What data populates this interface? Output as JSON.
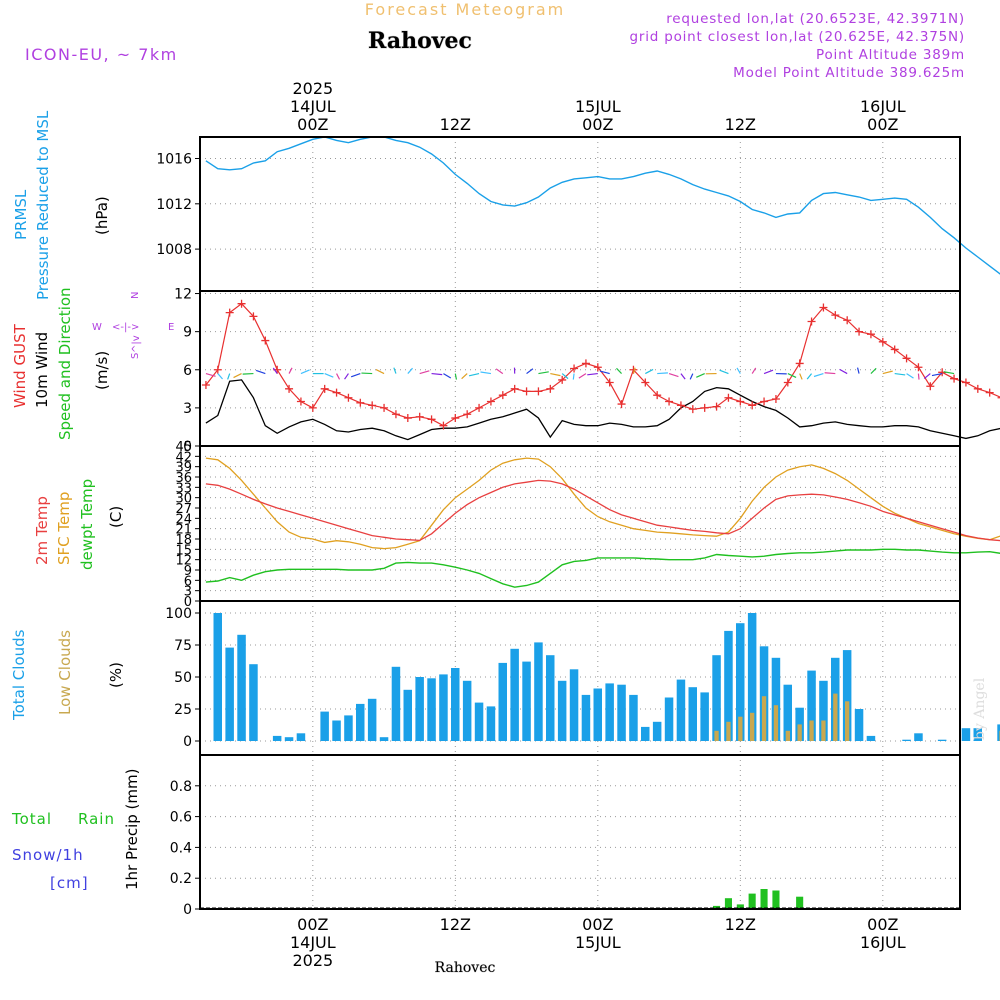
{
  "header": {
    "subtitle": "Forecast Meteogram",
    "location": "Rahovec",
    "model": "ICON-EU, ~ 7km",
    "requested": "requested lon,lat (20.6523E, 42.3971N)",
    "gridpoint": "grid point closest lon,lat (20.625E, 42.375N)",
    "point_alt": "Point Altitude 389m",
    "model_alt": "Model Point Altitude 389.625m",
    "footer_location": "Rahovec",
    "watermark": "by Angel"
  },
  "time_axis": {
    "top_labels": [
      {
        "hour": 0,
        "lines": [
          "2025",
          "14JUL",
          "00Z"
        ]
      },
      {
        "hour": 12,
        "lines": [
          "12Z"
        ]
      },
      {
        "hour": 24,
        "lines": [
          "15JUL",
          "00Z"
        ]
      },
      {
        "hour": 36,
        "lines": [
          "12Z"
        ]
      },
      {
        "hour": 48,
        "lines": [
          "16JUL",
          "00Z"
        ]
      },
      {
        "hour": 60,
        "lines": [
          "12Z"
        ]
      }
    ],
    "bottom_labels": [
      {
        "hour": 0,
        "lines": [
          "00Z",
          "14JUL",
          "2025"
        ]
      },
      {
        "hour": 12,
        "lines": [
          "12Z"
        ]
      },
      {
        "hour": 24,
        "lines": [
          "00Z",
          "15JUL"
        ]
      },
      {
        "hour": 36,
        "lines": [
          "12Z"
        ]
      },
      {
        "hour": 48,
        "lines": [
          "00Z",
          "16JUL"
        ]
      },
      {
        "hour": 60,
        "lines": [
          "12Z"
        ]
      }
    ]
  },
  "colors": {
    "pressure": "#1aa0e8",
    "gust": "#e83030",
    "wind": "#000000",
    "t2m": "#e84040",
    "tsfc": "#e0a020",
    "dewpt": "#20c020",
    "total_clouds": "#1aa0e8",
    "low_clouds": "#c8a850",
    "rain": "#20c020",
    "snow": "#4040e0",
    "compass": "#b040e0"
  },
  "panels": {
    "pressure": {
      "label1": "PRMSL",
      "label2": "Pressure Reduced to MSL",
      "unit": "(hPa)",
      "ticks": [
        "1008",
        "1012",
        "1016"
      ]
    },
    "wind": {
      "label1": "Wind GUST",
      "label2": "10m Wind",
      "label3": "Speed and Direction",
      "unit": "(m/s)",
      "ticks": [
        "0",
        "3",
        "6",
        "9",
        "12"
      ],
      "compass_n": "N",
      "compass_s": "S",
      "compass_w": "W",
      "compass_e": "E",
      "compass_arrow_h": "<-|->",
      "compass_arrow_v": "^|v"
    },
    "temp": {
      "label1": "2m Temp",
      "label2": "SFC Temp",
      "label3": "dewpt Temp",
      "unit": "(C)",
      "ticks": [
        "0",
        "3",
        "6",
        "9",
        "12",
        "15",
        "18",
        "21",
        "24",
        "27",
        "30",
        "33",
        "36",
        "39",
        "42",
        "45"
      ]
    },
    "clouds": {
      "label1": "Total Clouds",
      "label2": "Low Clouds",
      "unit": "(%)",
      "ticks": [
        "0",
        "25",
        "50",
        "75",
        "100"
      ]
    },
    "precip": {
      "label1": "Total",
      "label1b": "Rain",
      "label2": "Snow/1h",
      "label3": "[cm]",
      "unit": "1hr Precip (mm)",
      "ticks": [
        "0",
        "0.2",
        "0.4",
        "0.6",
        "0.8"
      ]
    }
  },
  "chart_data": [
    {
      "type": "line",
      "title": "PRMSL Pressure Reduced to MSL",
      "ylabel": "(hPa)",
      "ylim": [
        1004.3,
        1017.9
      ],
      "x_hours_start": -9,
      "x_hours_end": 54,
      "x_step_hours": 1,
      "series": [
        {
          "name": "PRMSL",
          "values": [
            1015.8,
            1015.1,
            1015.0,
            1015.1,
            1015.6,
            1015.8,
            1016.6,
            1016.9,
            1017.3,
            1017.7,
            1017.9,
            1017.6,
            1017.4,
            1017.7,
            1017.9,
            1017.9,
            1017.6,
            1017.4,
            1017.0,
            1016.4,
            1015.6,
            1014.6,
            1013.8,
            1012.9,
            1012.2,
            1011.9,
            1011.8,
            1012.1,
            1012.6,
            1013.4,
            1013.9,
            1014.2,
            1014.3,
            1014.4,
            1014.2,
            1014.2,
            1014.4,
            1014.7,
            1014.9,
            1014.6,
            1014.2,
            1013.7,
            1013.3,
            1013.0,
            1012.7,
            1012.2,
            1011.5,
            1011.2,
            1010.8,
            1011.1,
            1011.2,
            1012.3,
            1012.9,
            1013.0,
            1012.8,
            1012.6,
            1012.3,
            1012.4,
            1012.5,
            1012.4,
            1011.7,
            1010.8,
            1009.8,
            1009.0,
            1008.1,
            1007.3,
            1006.5,
            1005.7,
            1005.0,
            1004.5,
            1004.4
          ]
        }
      ]
    },
    {
      "type": "line",
      "title": "Wind GUST / 10m Wind",
      "ylabel": "(m/s)",
      "ylim": [
        0,
        12.2
      ],
      "x_hours_start": -9,
      "x_step_hours": 1,
      "series": [
        {
          "name": "Wind GUST",
          "values": [
            4.8,
            6.0,
            10.5,
            11.2,
            10.2,
            8.3,
            6.0,
            4.5,
            3.5,
            3.0,
            4.5,
            4.2,
            3.8,
            3.4,
            3.2,
            3.0,
            2.5,
            2.2,
            2.3,
            2.1,
            1.6,
            2.2,
            2.5,
            3.0,
            3.5,
            4.0,
            4.5,
            4.3,
            4.3,
            4.5,
            5.2,
            6.1,
            6.5,
            6.2,
            5.0,
            3.3,
            6.0,
            5.0,
            4.0,
            3.5,
            3.2,
            2.9,
            3.0,
            3.1,
            3.8,
            3.5,
            3.2,
            3.5,
            3.7,
            5.0,
            6.5,
            9.8,
            10.9,
            10.3,
            9.9,
            9.0,
            8.8,
            8.2,
            7.6,
            6.9,
            6.2,
            4.7,
            5.8,
            5.3,
            5.0,
            4.5,
            4.2,
            3.8,
            3.2,
            3.0,
            3.2,
            3.3,
            3.1,
            3.0,
            3.1,
            3.2,
            4.5,
            3.0,
            1.8,
            2.6,
            1.8,
            4.5,
            4.8,
            5.1,
            5.3,
            5.1,
            4.8,
            3.6
          ]
        },
        {
          "name": "10m Wind",
          "values": [
            1.8,
            2.4,
            5.1,
            5.2,
            3.8,
            1.6,
            1.0,
            1.5,
            1.9,
            2.1,
            1.7,
            1.2,
            1.1,
            1.3,
            1.4,
            1.2,
            0.8,
            0.5,
            0.9,
            1.3,
            1.4,
            1.4,
            1.5,
            1.8,
            2.1,
            2.3,
            2.6,
            2.9,
            2.2,
            0.7,
            2.0,
            1.7,
            1.6,
            1.6,
            1.8,
            1.7,
            1.5,
            1.5,
            1.6,
            2.1,
            3.0,
            3.5,
            4.3,
            4.6,
            4.5,
            4.0,
            3.5,
            3.1,
            2.8,
            2.2,
            1.5,
            1.6,
            1.8,
            1.9,
            1.7,
            1.6,
            1.5,
            1.5,
            1.6,
            1.6,
            1.5,
            1.2,
            1.0,
            0.8,
            0.6,
            0.8,
            1.2,
            1.4,
            1.8,
            2.0,
            1.7,
            1.5,
            1.8,
            2.0,
            1.9
          ]
        }
      ]
    },
    {
      "type": "line",
      "title": "2m Temp / SFC Temp / dewpt Temp",
      "ylabel": "(C)",
      "ylim": [
        0,
        45
      ],
      "x_hours_start": -9,
      "x_step_hours": 1,
      "series": [
        {
          "name": "2m Temp",
          "values": [
            34.0,
            33.6,
            32.5,
            31.0,
            29.5,
            28.2,
            27.0,
            26.0,
            25.0,
            24.0,
            23.0,
            22.0,
            21.0,
            20.0,
            19.0,
            18.5,
            18.0,
            17.8,
            17.6,
            19.5,
            22.5,
            25.5,
            28.0,
            30.0,
            31.5,
            33.0,
            34.0,
            34.5,
            35.0,
            34.8,
            34.0,
            32.5,
            30.5,
            28.5,
            26.5,
            25.0,
            24.0,
            23.0,
            22.0,
            21.5,
            21.0,
            20.5,
            20.2,
            19.8,
            19.5,
            21.0,
            24.0,
            27.0,
            29.5,
            30.5,
            30.8,
            31.0,
            30.8,
            30.2,
            29.5,
            28.5,
            27.5,
            26.0,
            25.0,
            24.0,
            23.0,
            22.0,
            21.0,
            20.0,
            19.0,
            18.3,
            17.8,
            17.5,
            18.5,
            21.0,
            24.0,
            26.5,
            28.5,
            30.5,
            32.0,
            33.0,
            33.5,
            33.8,
            34.0,
            33.8,
            33.3,
            32.0
          ]
        },
        {
          "name": "SFC Temp",
          "values": [
            41.5,
            41.0,
            38.5,
            35.0,
            31.0,
            27.0,
            23.0,
            20.0,
            18.5,
            18.0,
            17.0,
            17.5,
            17.2,
            16.5,
            15.5,
            15.2,
            15.5,
            16.5,
            17.5,
            22.0,
            26.5,
            30.0,
            32.5,
            35.0,
            38.0,
            40.0,
            41.0,
            41.5,
            41.2,
            39.0,
            35.5,
            31.0,
            27.0,
            24.5,
            23.0,
            22.0,
            21.0,
            20.5,
            20.0,
            19.8,
            19.5,
            19.2,
            19.0,
            18.8,
            20.0,
            24.0,
            29.0,
            33.0,
            36.0,
            38.0,
            39.0,
            39.5,
            38.5,
            37.0,
            35.0,
            32.5,
            30.0,
            27.5,
            25.5,
            24.0,
            22.5,
            21.5,
            20.5,
            19.5,
            18.8,
            18.2,
            17.8,
            19.0,
            22.5,
            27.0,
            31.0,
            34.5,
            37.5,
            40.5,
            41.8,
            41.5,
            40.5,
            39.0,
            37.5,
            36.0,
            34.0
          ]
        },
        {
          "name": "dewpt Temp",
          "values": [
            5.5,
            5.8,
            6.8,
            6.0,
            7.5,
            8.5,
            9.0,
            9.2,
            9.2,
            9.2,
            9.2,
            9.2,
            9.0,
            9.0,
            9.0,
            9.5,
            11.0,
            11.2,
            11.0,
            11.0,
            10.5,
            9.8,
            9.0,
            8.0,
            6.5,
            5.0,
            4.0,
            4.5,
            5.5,
            8.0,
            10.5,
            11.5,
            11.8,
            12.5,
            12.5,
            12.5,
            12.5,
            12.3,
            12.2,
            12.0,
            12.0,
            12.0,
            12.5,
            13.5,
            13.2,
            13.0,
            12.8,
            13.0,
            13.5,
            13.8,
            14.0,
            14.0,
            14.2,
            14.5,
            14.8,
            14.8,
            14.8,
            15.0,
            15.0,
            14.8,
            14.8,
            14.5,
            14.2,
            14.0,
            14.0,
            14.2,
            14.3,
            13.8,
            13.5,
            12.5,
            11.0,
            9.5,
            8.0,
            7.8,
            8.5,
            9.0,
            9.2
          ]
        }
      ]
    },
    {
      "type": "bar",
      "title": "Total Clouds / Low Clouds",
      "ylabel": "(%)",
      "ylim": [
        0,
        100
      ],
      "x_hours_start": -8,
      "x_step_hours": 1,
      "series": [
        {
          "name": "Total Clouds",
          "values": [
            100,
            73,
            83,
            60,
            0,
            4,
            3,
            6,
            0,
            23,
            16,
            20,
            29,
            33,
            3,
            58,
            40,
            50,
            49,
            52,
            57,
            47,
            30,
            27,
            61,
            72,
            62,
            77,
            67,
            47,
            56,
            36,
            41,
            45,
            44,
            36,
            11,
            15,
            34,
            48,
            42,
            38,
            67,
            86,
            92,
            100,
            74,
            65,
            44,
            26,
            55,
            47,
            65,
            71,
            25,
            4,
            0,
            0,
            1,
            6,
            0,
            1,
            0,
            10,
            10,
            0,
            13,
            18,
            11,
            100,
            17,
            24,
            46,
            77,
            100
          ]
        },
        {
          "name": "Low Clouds",
          "values": [
            0,
            0,
            0,
            0,
            0,
            0,
            0,
            0,
            0,
            0,
            0,
            0,
            0,
            0,
            0,
            0,
            0,
            0,
            0,
            0,
            0,
            0,
            0,
            0,
            0,
            0,
            0,
            0,
            0,
            0,
            0,
            0,
            0,
            0,
            0,
            0,
            0,
            0,
            0,
            0,
            0,
            0,
            8,
            15,
            19,
            22,
            35,
            28,
            8,
            13,
            16,
            16,
            37,
            31,
            0,
            0,
            0,
            0,
            0,
            0,
            0,
            0,
            0,
            0,
            0,
            0,
            8,
            8,
            0,
            0,
            0,
            0,
            0,
            0,
            0
          ]
        }
      ]
    },
    {
      "type": "bar",
      "title": "1hr Precip (mm)",
      "ylabel": "1hr Precip (mm)",
      "ylim": [
        0,
        1
      ],
      "series": [
        {
          "name": "Total Rain",
          "points": [
            [
              34,
              0.02
            ],
            [
              35,
              0.07
            ],
            [
              36,
              0.03
            ],
            [
              37,
              0.1
            ],
            [
              38,
              0.13
            ],
            [
              39,
              0.12
            ],
            [
              41,
              0.08
            ]
          ]
        },
        {
          "name": "Snow/1h",
          "points": []
        }
      ]
    }
  ]
}
